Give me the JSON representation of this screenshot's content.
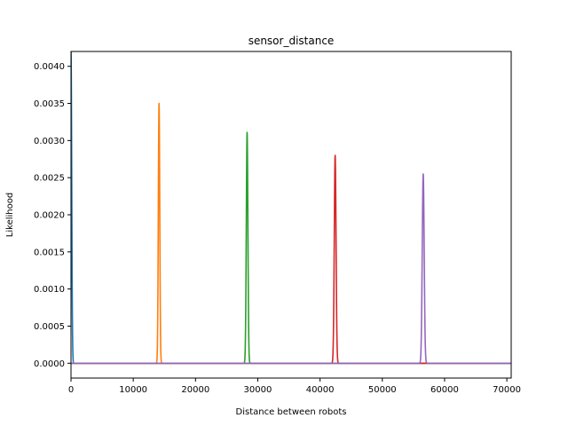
{
  "chart_data": {
    "type": "line",
    "title": "sensor_distance",
    "xlabel": "Distance between robots",
    "ylabel": "Likelihood",
    "xlim": [
      0,
      70700
    ],
    "ylim": [
      -0.0002,
      0.0042
    ],
    "xticks": [
      0,
      10000,
      20000,
      30000,
      40000,
      50000,
      60000,
      70000
    ],
    "yticks": [
      0.0,
      0.0005,
      0.001,
      0.0015,
      0.002,
      0.0025,
      0.003,
      0.0035,
      0.004
    ],
    "xtick_labels": [
      "0",
      "10000",
      "20000",
      "30000",
      "40000",
      "50000",
      "60000",
      "70000"
    ],
    "ytick_labels": [
      "0.0000",
      "0.0005",
      "0.0010",
      "0.0015",
      "0.0020",
      "0.0025",
      "0.0030",
      "0.0035",
      "0.0040"
    ],
    "grid": false,
    "series": [
      {
        "color": "#1f77b4",
        "center": 0,
        "peak": 0.0042,
        "sigma": 115
      },
      {
        "color": "#ff7f0e",
        "center": 14142,
        "peak": 0.0035,
        "sigma": 114
      },
      {
        "color": "#2ca02c",
        "center": 28284,
        "peak": 0.00311,
        "sigma": 128
      },
      {
        "color": "#d62728",
        "center": 42426,
        "peak": 0.0028,
        "sigma": 142
      },
      {
        "color": "#9467bd",
        "center": 56569,
        "peak": 0.00255,
        "sigma": 156
      }
    ]
  }
}
